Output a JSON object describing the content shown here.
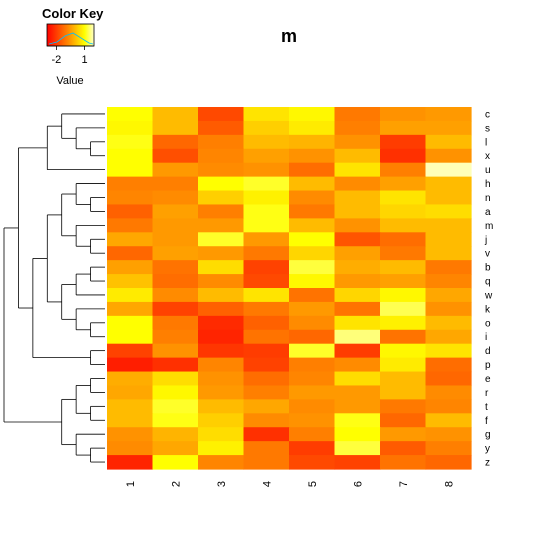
{
  "chart_data": {
    "type": "heatmap",
    "title": "m",
    "color_key": {
      "title": "Color Key",
      "xlabel": "Value",
      "ticks": [
        -2,
        1
      ],
      "range": [
        -3,
        2
      ],
      "colors": [
        "#ff0000",
        "#ff8800",
        "#ffff00",
        "#ffffcc"
      ]
    },
    "columns": [
      "1",
      "2",
      "3",
      "4",
      "5",
      "6",
      "7",
      "8"
    ],
    "rows": [
      "c",
      "s",
      "l",
      "x",
      "u",
      "h",
      "n",
      "a",
      "m",
      "j",
      "v",
      "b",
      "q",
      "w",
      "k",
      "o",
      "i",
      "d",
      "p",
      "e",
      "r",
      "t",
      "f",
      "g",
      "y",
      "z"
    ],
    "values": [
      [
        1.0,
        0.0,
        -1.8,
        0.6,
        0.9,
        -1.0,
        -0.6,
        -0.5
      ],
      [
        0.9,
        0.0,
        -1.5,
        0.3,
        0.7,
        -0.9,
        -0.4,
        -0.4
      ],
      [
        1.1,
        -1.3,
        -0.9,
        0.0,
        -0.1,
        -0.6,
        -2.0,
        0.0
      ],
      [
        1.0,
        -1.7,
        -0.8,
        -0.4,
        -0.6,
        0.0,
        -2.2,
        -0.6
      ],
      [
        1.0,
        -0.5,
        -0.7,
        -0.6,
        -1.2,
        0.6,
        -0.9,
        1.9
      ],
      [
        -0.9,
        -0.9,
        1.0,
        1.2,
        0.0,
        -0.7,
        -0.4,
        0.0
      ],
      [
        -0.8,
        -0.7,
        0.3,
        0.8,
        -0.7,
        0.0,
        0.6,
        0.0
      ],
      [
        -1.4,
        -0.4,
        -0.9,
        1.1,
        -1.0,
        0.0,
        0.4,
        0.5
      ],
      [
        -1.0,
        -0.5,
        -0.5,
        1.1,
        0.0,
        -0.6,
        0.0,
        0.0
      ],
      [
        -0.3,
        -0.5,
        1.2,
        -0.5,
        1.0,
        -1.6,
        -1.2,
        0.0
      ],
      [
        -1.3,
        -0.4,
        -0.5,
        -1.0,
        0.4,
        -0.4,
        -1.0,
        0.0
      ],
      [
        -0.4,
        -1.1,
        0.5,
        -1.9,
        1.3,
        -0.2,
        0.0,
        -1.0
      ],
      [
        0.1,
        -1.2,
        -0.7,
        -1.8,
        0.9,
        -0.5,
        -0.4,
        -0.8
      ],
      [
        0.7,
        -0.7,
        0.0,
        0.6,
        -1.1,
        0.4,
        0.9,
        -0.3
      ],
      [
        -0.3,
        -1.9,
        -1.4,
        -1.0,
        -0.5,
        -1.1,
        1.4,
        -0.6
      ],
      [
        1.0,
        -1.0,
        -2.3,
        -1.4,
        -0.7,
        0.6,
        0.8,
        0.0
      ],
      [
        1.0,
        -0.9,
        -2.4,
        -1.1,
        -1.3,
        1.6,
        -1.1,
        -0.3
      ],
      [
        -1.9,
        -0.6,
        -2.1,
        -2.0,
        1.2,
        -2.0,
        0.9,
        0.6
      ],
      [
        -2.5,
        -2.2,
        -0.8,
        -1.9,
        -0.9,
        -0.7,
        0.7,
        -1.2
      ],
      [
        -0.2,
        0.5,
        -0.6,
        -1.2,
        -0.8,
        0.5,
        0.0,
        -1.3
      ],
      [
        -0.3,
        0.9,
        -0.5,
        -0.9,
        -0.5,
        -0.5,
        0.0,
        -0.7
      ],
      [
        0.0,
        1.2,
        0.0,
        -0.3,
        -0.7,
        -0.5,
        -1.0,
        -0.8
      ],
      [
        0.0,
        1.1,
        0.3,
        -0.7,
        -0.6,
        1.1,
        -1.3,
        0.0
      ],
      [
        -0.6,
        -0.1,
        0.5,
        -2.2,
        -0.9,
        1.0,
        -0.5,
        -0.6
      ],
      [
        -0.7,
        -0.3,
        0.8,
        -1.0,
        -2.0,
        1.3,
        -1.5,
        -0.9
      ],
      [
        -2.4,
        1.0,
        -0.8,
        -1.0,
        -1.8,
        -1.9,
        -1.1,
        -1.3
      ]
    ],
    "row_dendrogram": "left",
    "column_dendrogram": "none"
  }
}
